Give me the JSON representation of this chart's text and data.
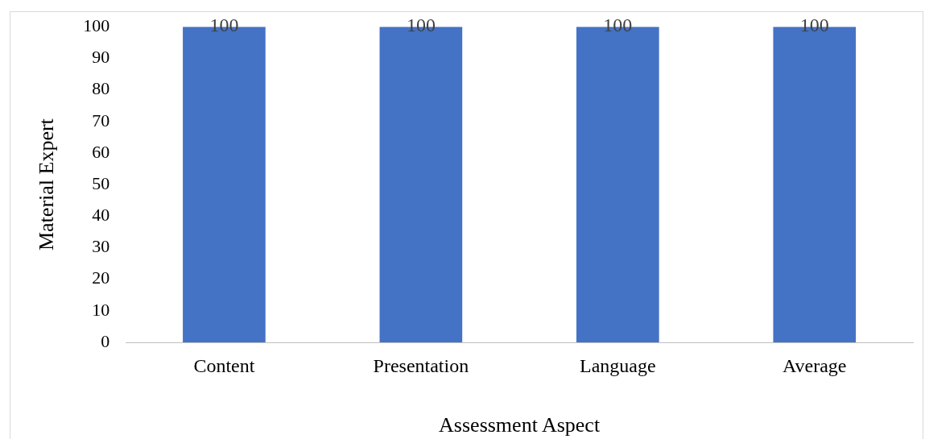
{
  "chart_data": {
    "type": "bar",
    "xlabel": "Assessment Aspect",
    "ylabel": "Material Expert",
    "categories": [
      "Content",
      "Presentation",
      "Language",
      "Average"
    ],
    "values": [
      100,
      100,
      100,
      100
    ],
    "color": "#4472c4",
    "ylim": [
      0,
      100
    ],
    "yticks": [
      0,
      10,
      20,
      30,
      40,
      50,
      60,
      70,
      80,
      90,
      100
    ],
    "grid": false,
    "legend": false,
    "data_labels": true
  }
}
